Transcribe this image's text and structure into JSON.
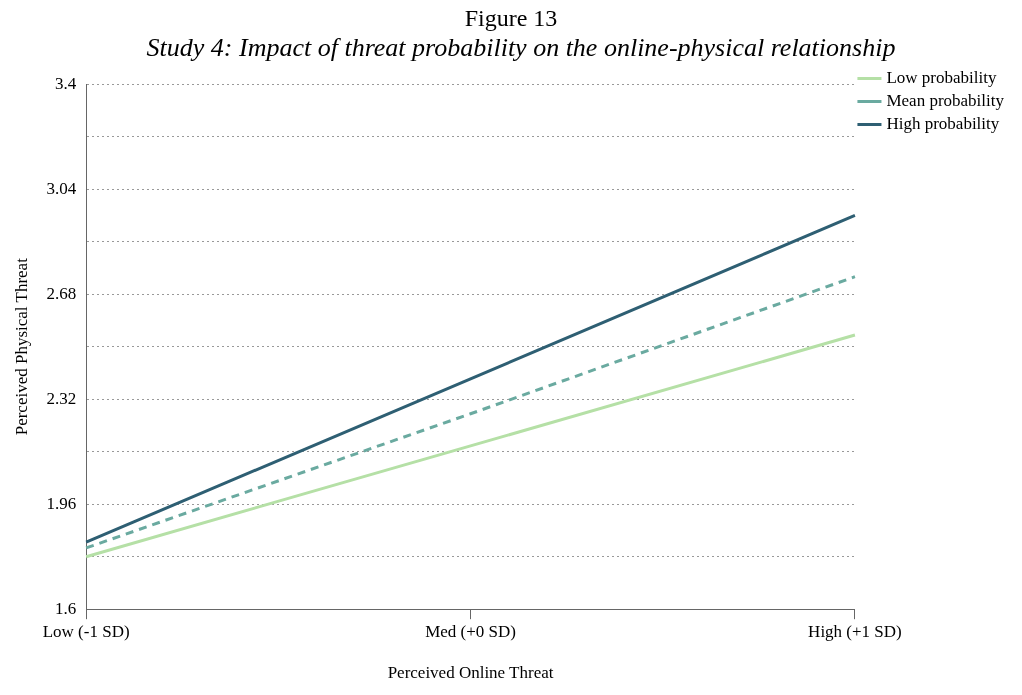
{
  "chart_data": {
    "type": "line",
    "title": "Figure 13",
    "subtitle": "Study 4: Impact of threat probability on the online-physical relationship",
    "xlabel": "Perceived Online Threat",
    "ylabel": "Perceived Physical Threat",
    "categories": [
      "Low (-1 SD)",
      "Med (+0 SD)",
      "High (+1 SD)"
    ],
    "series": [
      {
        "name": "Low probability",
        "color": "#b5e0a6",
        "values": [
          1.78,
          2.16,
          2.54
        ],
        "line_style": "solid"
      },
      {
        "name": "Mean probability",
        "color": "#6aaaa0",
        "values": [
          1.81,
          2.27,
          2.74
        ],
        "line_style": "dashed"
      },
      {
        "name": "High probability",
        "color": "#2e5f73",
        "values": [
          1.83,
          2.39,
          2.95
        ],
        "line_style": "solid"
      }
    ],
    "ylim": [
      1.6,
      3.4
    ],
    "yticks": [
      1.6,
      {
        "value": 1.78,
        "label": null
      },
      1.96,
      {
        "value": 2.14,
        "label": null
      },
      2.32,
      {
        "value": 2.5,
        "label": null
      },
      2.68,
      {
        "value": 2.86,
        "label": null
      },
      3.04,
      {
        "value": 3.22,
        "label": null
      },
      3.4
    ],
    "grid": "y",
    "legend": "top right",
    "marker": "none"
  }
}
